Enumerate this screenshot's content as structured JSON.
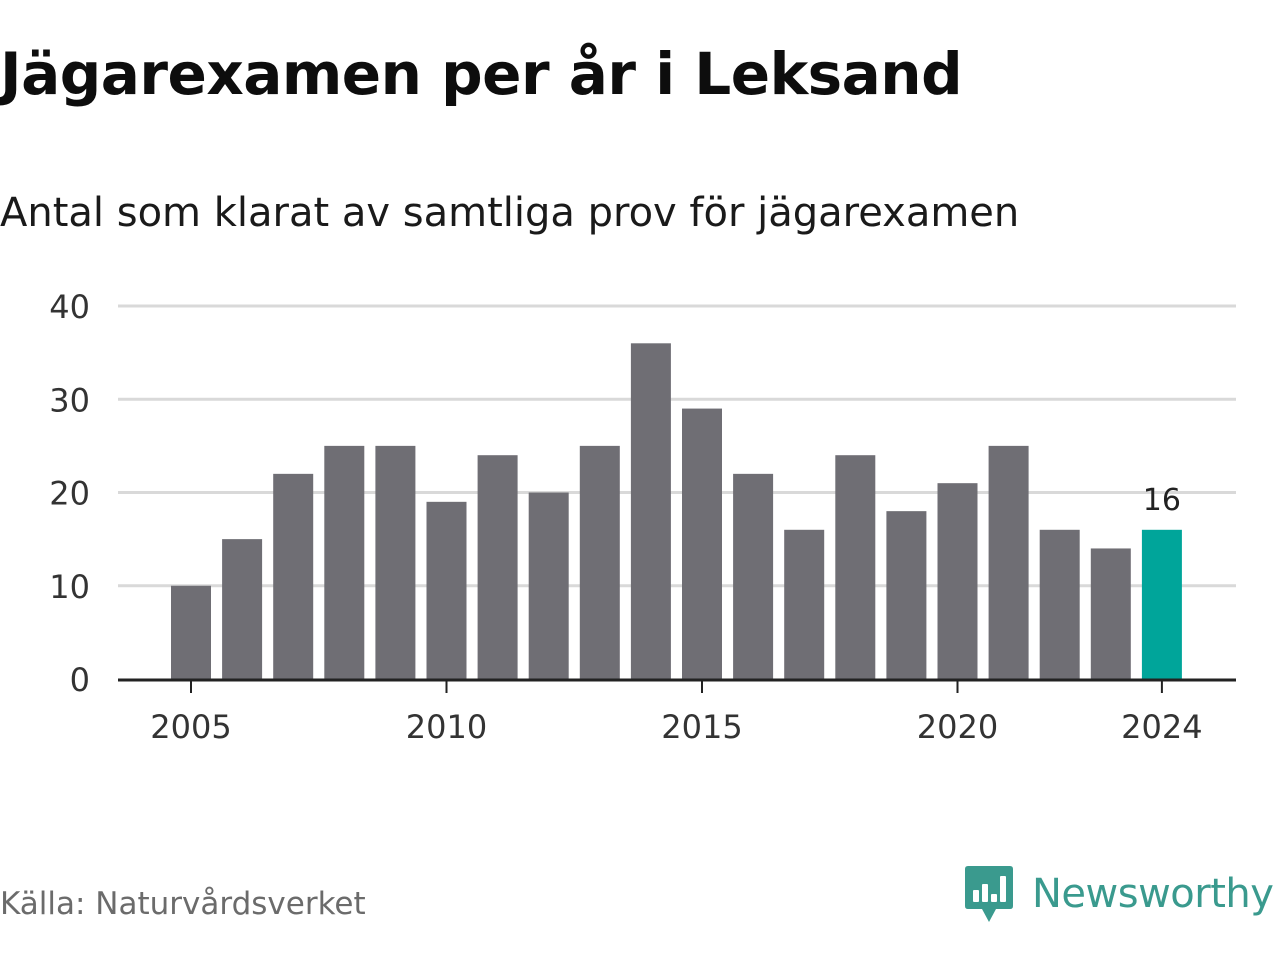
{
  "header": {
    "title": "Jägarexamen per år i Leksand",
    "subtitle": "Antal som klarat av samtliga prov för jägarexamen"
  },
  "chart_data": {
    "type": "bar",
    "title": "Jägarexamen per år i Leksand",
    "subtitle": "Antal som klarat av samtliga prov för jägarexamen",
    "categories": [
      "2005",
      "2006",
      "2007",
      "2008",
      "2009",
      "2010",
      "2011",
      "2012",
      "2013",
      "2014",
      "2015",
      "2016",
      "2017",
      "2018",
      "2019",
      "2020",
      "2021",
      "2022",
      "2023",
      "2024"
    ],
    "values": [
      10,
      15,
      22,
      25,
      25,
      19,
      24,
      20,
      25,
      36,
      29,
      22,
      16,
      24,
      18,
      21,
      25,
      16,
      14,
      16
    ],
    "x_ticks": [
      "2005",
      "2010",
      "2015",
      "2020",
      "2024"
    ],
    "y_ticks": [
      0,
      10,
      20,
      30,
      40
    ],
    "ylim": [
      0,
      40
    ],
    "grid": true,
    "highlight": {
      "category": "2024",
      "label": "16"
    },
    "colors": {
      "bar": "#6f6e74",
      "highlight": "#00a59a",
      "grid": "#d9d9d9",
      "axis": "#222222"
    }
  },
  "footer": {
    "source": "Källa: Naturvårdsverket",
    "brand": "Newsworthy",
    "brand_icon": "bar-chart-speech-bubble-icon",
    "brand_color": "#3a9a8e"
  }
}
